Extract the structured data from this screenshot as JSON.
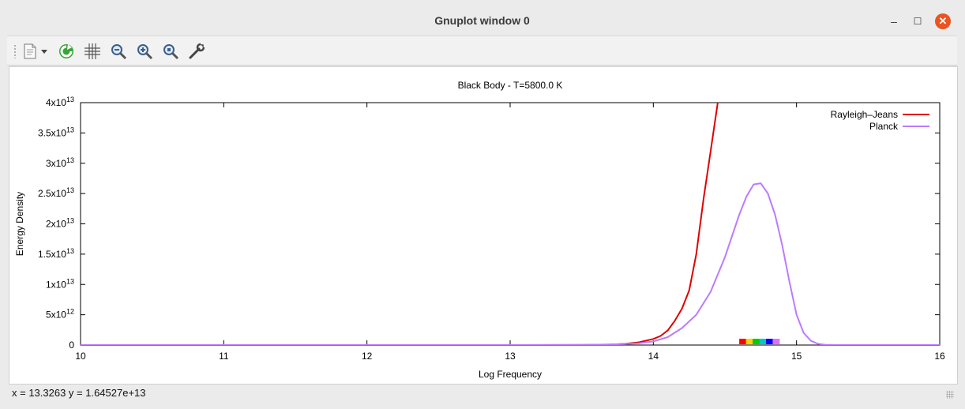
{
  "window": {
    "title": "Gnuplot window 0",
    "controls": {
      "minimize": "–",
      "maximize": "☐",
      "close": "✕"
    }
  },
  "toolbar": {
    "items": [
      {
        "icon": "copy-to-clipboard-icon"
      },
      {
        "icon": "dropdown-arrow-icon"
      },
      {
        "icon": "replot-icon"
      },
      {
        "icon": "grid-icon"
      },
      {
        "icon": "zoom-out-icon"
      },
      {
        "icon": "zoom-in-icon"
      },
      {
        "icon": "zoom-reset-icon"
      },
      {
        "icon": "settings-wrench-icon"
      }
    ]
  },
  "status": {
    "text": "x = 13.3263 y = 1.64527e+13"
  },
  "colors": {
    "rayleigh": "#e00000",
    "planck": "#bb7bff",
    "close_button": "#e95420"
  },
  "chart_data": {
    "type": "line",
    "title": "Black Body - T=5800.0 K",
    "xlabel": "Log Frequency",
    "ylabel": "Energy Density",
    "xlim": [
      10,
      16
    ],
    "ylim": [
      0,
      40000000000000.0
    ],
    "xticks": [
      {
        "value": 10,
        "label": "10"
      },
      {
        "value": 11,
        "label": "11"
      },
      {
        "value": 12,
        "label": "12"
      },
      {
        "value": 13,
        "label": "13"
      },
      {
        "value": 14,
        "label": "14"
      },
      {
        "value": 15,
        "label": "15"
      },
      {
        "value": 16,
        "label": "16"
      }
    ],
    "yticks": [
      {
        "value": 0,
        "mant": "0",
        "exp": ""
      },
      {
        "value": 5000000000000.0,
        "mant": "5x10",
        "exp": "12"
      },
      {
        "value": 10000000000000.0,
        "mant": "1x10",
        "exp": "13"
      },
      {
        "value": 15000000000000.0,
        "mant": "1.5x10",
        "exp": "13"
      },
      {
        "value": 20000000000000.0,
        "mant": "2x10",
        "exp": "13"
      },
      {
        "value": 25000000000000.0,
        "mant": "2.5x10",
        "exp": "13"
      },
      {
        "value": 30000000000000.0,
        "mant": "3x10",
        "exp": "13"
      },
      {
        "value": 35000000000000.0,
        "mant": "3.5x10",
        "exp": "13"
      },
      {
        "value": 40000000000000.0,
        "mant": "4x10",
        "exp": "13"
      }
    ],
    "legend": "top-right",
    "series": [
      {
        "name": "Rayleigh–Jeans",
        "color": "#e00000",
        "x": [
          10,
          12,
          13,
          13.5,
          13.7,
          13.8,
          13.9,
          14.0,
          14.05,
          14.1,
          14.15,
          14.2,
          14.25,
          14.3,
          14.35,
          14.4,
          14.45
        ],
        "y": [
          0,
          0,
          0,
          10000000000.0,
          80000000000.0,
          200000000000.0,
          450000000000.0,
          1000000000000.0,
          1500000000000.0,
          2400000000000.0,
          4000000000000.0,
          6000000000000.0,
          9000000000000.0,
          15000000000000.0,
          24000000000000.0,
          32000000000000.0,
          40000000000000.0
        ]
      },
      {
        "name": "Planck",
        "color": "#bb7bff",
        "x": [
          10,
          13,
          13.5,
          13.8,
          13.9,
          14.0,
          14.1,
          14.2,
          14.3,
          14.4,
          14.5,
          14.6,
          14.65,
          14.7,
          14.75,
          14.8,
          14.85,
          14.9,
          14.95,
          15.0,
          15.05,
          15.1,
          15.15,
          15.2,
          15.3,
          15.5,
          16
        ],
        "y": [
          0,
          0,
          20000000000.0,
          150000000000.0,
          300000000000.0,
          600000000000.0,
          1300000000000.0,
          2800000000000.0,
          5000000000000.0,
          8800000000000.0,
          14500000000000.0,
          21500000000000.0,
          24500000000000.0,
          26500000000000.0,
          26700000000000.0,
          25000000000000.0,
          21500000000000.0,
          16500000000000.0,
          10500000000000.0,
          5000000000000.0,
          2000000000000.0,
          700000000000.0,
          200000000000.0,
          50000000000.0,
          0,
          0,
          0
        ]
      }
    ],
    "spectrum_colors": [
      "#ff0000",
      "#ffd000",
      "#00cc00",
      "#00c8c8",
      "#0000ff",
      "#e070ff"
    ],
    "spectrum_range": [
      14.6,
      14.88
    ]
  }
}
